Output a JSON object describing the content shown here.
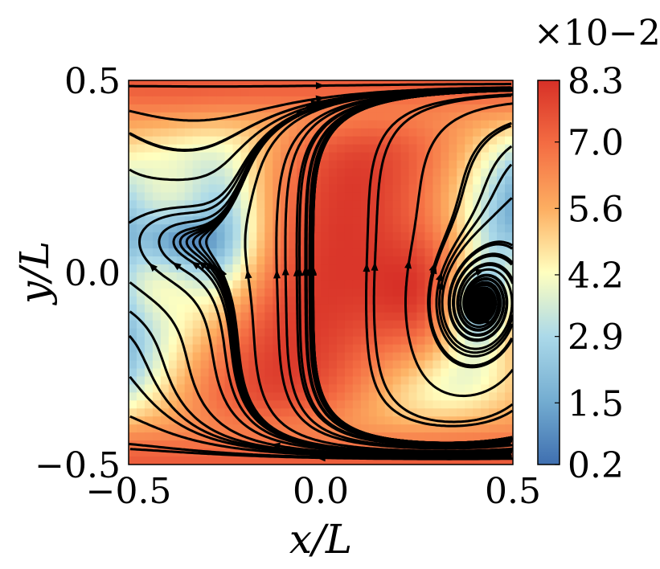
{
  "chart_data": {
    "type": "heatmap",
    "subtype": "streamline-over-magnitude-field",
    "xlabel": "x/L",
    "ylabel": "y/L",
    "xlim": [
      -0.5,
      0.5
    ],
    "ylim": [
      -0.5,
      0.5
    ],
    "x_ticks": [
      "−0.5",
      "0.0",
      "0.5"
    ],
    "y_ticks": [
      "−0.5",
      "0.0",
      "0.5"
    ],
    "x_tick_values": [
      -0.5,
      0.0,
      0.5
    ],
    "y_tick_values": [
      -0.5,
      0.0,
      0.5
    ],
    "colorbar": {
      "multiplier_label": "×10−2",
      "range": [
        0.2,
        8.3
      ],
      "ticks": [
        "8.3",
        "7.0",
        "5.6",
        "4.2",
        "2.9",
        "1.5",
        "0.2"
      ],
      "tick_values": [
        8.3,
        7.0,
        5.6,
        4.2,
        2.9,
        1.5,
        0.2
      ],
      "colormap": "RdYlBu_r",
      "colors": [
        "#3f6fb0",
        "#74add1",
        "#abd9e9",
        "#ffffbf",
        "#fdae61",
        "#f46d43",
        "#d73027"
      ]
    },
    "vortices": [
      {
        "x": -0.4,
        "y": 0.08
      },
      {
        "x": 0.4,
        "y": -0.08
      }
    ],
    "grid": false,
    "legend": "none",
    "streamline_color": "#000000"
  }
}
